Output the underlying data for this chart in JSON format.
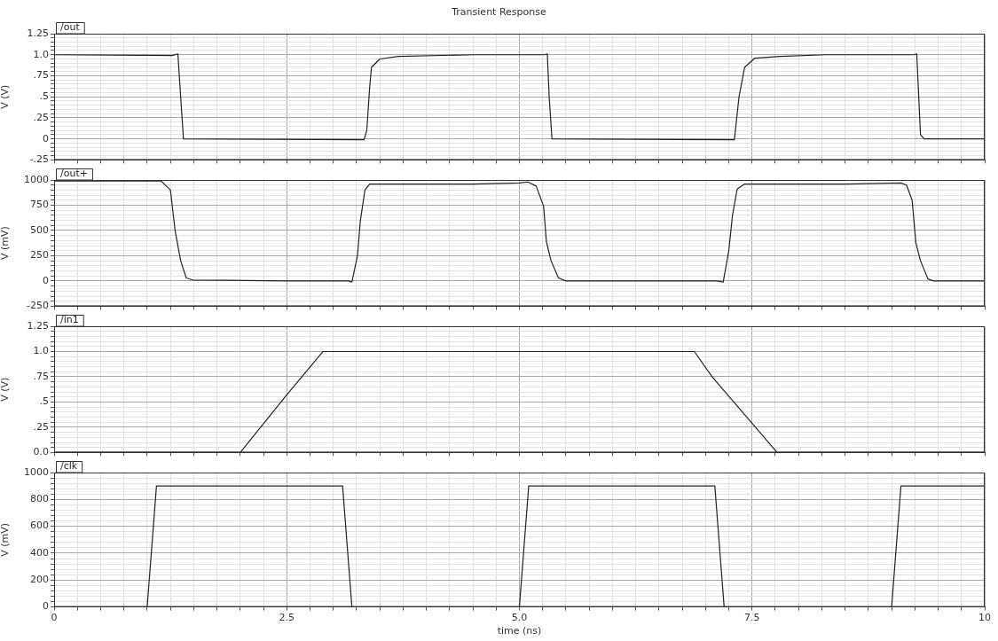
{
  "chart_data": [
    {
      "type": "line",
      "title": "Transient Response",
      "ylabel": "V (V)",
      "legend": "top left",
      "grid": true,
      "marker": "none",
      "line_style": "solid",
      "tick_labels": "y",
      "xlim": [
        0,
        10
      ],
      "xticks": [
        0,
        {
          "value": 0.25,
          "label": null
        },
        {
          "value": 0.5,
          "label": null
        },
        {
          "value": 0.75,
          "label": null
        },
        {
          "value": 1,
          "label": null
        },
        {
          "value": 1.25,
          "label": null
        },
        {
          "value": 1.5,
          "label": null
        },
        {
          "value": 1.75,
          "label": null
        },
        {
          "value": 2,
          "label": null
        },
        {
          "value": 2.25,
          "label": null
        },
        2.5,
        {
          "value": 2.75,
          "label": null
        },
        {
          "value": 3,
          "label": null
        },
        {
          "value": 3.25,
          "label": null
        },
        {
          "value": 3.5,
          "label": null
        },
        {
          "value": 3.75,
          "label": null
        },
        {
          "value": 4,
          "label": null
        },
        {
          "value": 4.25,
          "label": null
        },
        {
          "value": 4.5,
          "label": null
        },
        {
          "value": 4.75,
          "label": null
        },
        5,
        {
          "value": 5.25,
          "label": null
        },
        {
          "value": 5.5,
          "label": null
        },
        {
          "value": 5.75,
          "label": null
        },
        {
          "value": 6,
          "label": null
        },
        {
          "value": 6.25,
          "label": null
        },
        {
          "value": 6.5,
          "label": null
        },
        {
          "value": 6.75,
          "label": null
        },
        {
          "value": 7,
          "label": null
        },
        {
          "value": 7.25,
          "label": null
        },
        7.5,
        {
          "value": 7.75,
          "label": null
        },
        {
          "value": 8,
          "label": null
        },
        {
          "value": 8.25,
          "label": null
        },
        {
          "value": 8.5,
          "label": null
        },
        {
          "value": 8.75,
          "label": null
        },
        {
          "value": 9,
          "label": null
        },
        {
          "value": 9.25,
          "label": null
        },
        {
          "value": 9.5,
          "label": null
        },
        {
          "value": 9.75,
          "label": null
        },
        10
      ],
      "ylim": [
        -0.25,
        1.25
      ],
      "yticks": [
        {
          "value": -0.25,
          "label": "-.25"
        },
        {
          "value": -0.2,
          "label": null
        },
        {
          "value": -0.15,
          "label": null
        },
        {
          "value": -0.1,
          "label": null
        },
        {
          "value": -0.05,
          "label": null
        },
        0,
        {
          "value": 0.05,
          "label": null
        },
        {
          "value": 0.1,
          "label": null
        },
        {
          "value": 0.15,
          "label": null
        },
        {
          "value": 0.2,
          "label": null
        },
        {
          "value": 0.25,
          "label": ".25"
        },
        {
          "value": 0.3,
          "label": null
        },
        {
          "value": 0.35,
          "label": null
        },
        {
          "value": 0.4,
          "label": null
        },
        {
          "value": 0.45,
          "label": null
        },
        {
          "value": 0.5,
          "label": ".5"
        },
        {
          "value": 0.55,
          "label": null
        },
        {
          "value": 0.6,
          "label": null
        },
        {
          "value": 0.65,
          "label": null
        },
        {
          "value": 0.7,
          "label": null
        },
        {
          "value": 0.75,
          "label": ".75"
        },
        {
          "value": 0.8,
          "label": null
        },
        {
          "value": 0.85,
          "label": null
        },
        {
          "value": 0.9,
          "label": null
        },
        {
          "value": 0.95,
          "label": null
        },
        {
          "value": 1,
          "label": "1.0"
        },
        {
          "value": 1.05,
          "label": null
        },
        {
          "value": 1.1,
          "label": null
        },
        {
          "value": 1.15,
          "label": null
        },
        {
          "value": 1.2,
          "label": null
        },
        1.25
      ],
      "series": [
        {
          "name": "/out",
          "color": "#222222",
          "x": [
            0,
            1.27,
            1.33,
            1.36,
            1.39,
            3.33,
            3.36,
            3.39,
            3.41,
            3.5,
            3.7,
            4.5,
            5.27,
            5.3,
            5.32,
            5.35,
            7.31,
            7.36,
            7.42,
            7.53,
            7.8,
            8.3,
            9.24,
            9.27,
            9.31,
            9.35,
            10
          ],
          "values": [
            1.0,
            0.99,
            1.01,
            0.5,
            0.0,
            -0.01,
            0.1,
            0.6,
            0.85,
            0.95,
            0.98,
            1.0,
            1.0,
            1.01,
            0.5,
            0.0,
            -0.01,
            0.5,
            0.85,
            0.96,
            0.98,
            1.0,
            1.0,
            1.01,
            0.05,
            0.0,
            0.0
          ]
        }
      ]
    },
    {
      "type": "line",
      "ylabel": "V (mV)",
      "legend": "top left",
      "grid": true,
      "marker": "none",
      "line_style": "solid",
      "tick_labels": "y",
      "xlim": [
        0,
        10
      ],
      "xticks": [
        0,
        {
          "value": 0.25,
          "label": null
        },
        {
          "value": 0.5,
          "label": null
        },
        {
          "value": 0.75,
          "label": null
        },
        {
          "value": 1,
          "label": null
        },
        {
          "value": 1.25,
          "label": null
        },
        {
          "value": 1.5,
          "label": null
        },
        {
          "value": 1.75,
          "label": null
        },
        {
          "value": 2,
          "label": null
        },
        {
          "value": 2.25,
          "label": null
        },
        2.5,
        {
          "value": 2.75,
          "label": null
        },
        {
          "value": 3,
          "label": null
        },
        {
          "value": 3.25,
          "label": null
        },
        {
          "value": 3.5,
          "label": null
        },
        {
          "value": 3.75,
          "label": null
        },
        {
          "value": 4,
          "label": null
        },
        {
          "value": 4.25,
          "label": null
        },
        {
          "value": 4.5,
          "label": null
        },
        {
          "value": 4.75,
          "label": null
        },
        5,
        {
          "value": 5.25,
          "label": null
        },
        {
          "value": 5.5,
          "label": null
        },
        {
          "value": 5.75,
          "label": null
        },
        {
          "value": 6,
          "label": null
        },
        {
          "value": 6.25,
          "label": null
        },
        {
          "value": 6.5,
          "label": null
        },
        {
          "value": 6.75,
          "label": null
        },
        {
          "value": 7,
          "label": null
        },
        {
          "value": 7.25,
          "label": null
        },
        7.5,
        {
          "value": 7.75,
          "label": null
        },
        {
          "value": 8,
          "label": null
        },
        {
          "value": 8.25,
          "label": null
        },
        {
          "value": 8.5,
          "label": null
        },
        {
          "value": 8.75,
          "label": null
        },
        {
          "value": 9,
          "label": null
        },
        {
          "value": 9.25,
          "label": null
        },
        {
          "value": 9.5,
          "label": null
        },
        {
          "value": 9.75,
          "label": null
        },
        10
      ],
      "ylim": [
        -250,
        1000
      ],
      "yticks": [
        -250,
        {
          "value": -200,
          "label": null
        },
        {
          "value": -150,
          "label": null
        },
        {
          "value": -100,
          "label": null
        },
        {
          "value": -50,
          "label": null
        },
        0,
        {
          "value": 50,
          "label": null
        },
        {
          "value": 100,
          "label": null
        },
        {
          "value": 150,
          "label": null
        },
        {
          "value": 200,
          "label": null
        },
        250,
        {
          "value": 300,
          "label": null
        },
        {
          "value": 350,
          "label": null
        },
        {
          "value": 400,
          "label": null
        },
        {
          "value": 450,
          "label": null
        },
        500,
        {
          "value": 550,
          "label": null
        },
        {
          "value": 600,
          "label": null
        },
        {
          "value": 650,
          "label": null
        },
        {
          "value": 700,
          "label": null
        },
        750,
        {
          "value": 800,
          "label": null
        },
        {
          "value": 850,
          "label": null
        },
        {
          "value": 900,
          "label": null
        },
        {
          "value": 950,
          "label": null
        },
        1000
      ],
      "series": [
        {
          "name": "/out+",
          "color": "#222222",
          "x": [
            0,
            1.15,
            1.25,
            1.3,
            1.36,
            1.42,
            1.49,
            2.5,
            3.16,
            3.2,
            3.26,
            3.29,
            3.34,
            3.39,
            4.5,
            5.0,
            5.09,
            5.18,
            5.26,
            5.29,
            5.34,
            5.42,
            5.5,
            7.12,
            7.19,
            7.25,
            7.29,
            7.34,
            7.42,
            8.5,
            9.1,
            9.16,
            9.22,
            9.26,
            9.31,
            9.39,
            9.45,
            10
          ],
          "values": [
            990,
            990,
            900,
            500,
            200,
            30,
            10,
            0,
            0,
            -10,
            250,
            590,
            900,
            960,
            960,
            970,
            980,
            940,
            740,
            390,
            200,
            30,
            0,
            0,
            -10,
            300,
            650,
            910,
            960,
            960,
            970,
            950,
            800,
            380,
            200,
            20,
            0,
            0
          ]
        }
      ]
    },
    {
      "type": "line",
      "ylabel": "V (V)",
      "legend": "top left",
      "grid": true,
      "marker": "none",
      "line_style": "solid",
      "tick_labels": "y",
      "xlim": [
        0,
        10
      ],
      "xticks": [
        0,
        {
          "value": 0.25,
          "label": null
        },
        {
          "value": 0.5,
          "label": null
        },
        {
          "value": 0.75,
          "label": null
        },
        {
          "value": 1,
          "label": null
        },
        {
          "value": 1.25,
          "label": null
        },
        {
          "value": 1.5,
          "label": null
        },
        {
          "value": 1.75,
          "label": null
        },
        {
          "value": 2,
          "label": null
        },
        {
          "value": 2.25,
          "label": null
        },
        2.5,
        {
          "value": 2.75,
          "label": null
        },
        {
          "value": 3,
          "label": null
        },
        {
          "value": 3.25,
          "label": null
        },
        {
          "value": 3.5,
          "label": null
        },
        {
          "value": 3.75,
          "label": null
        },
        {
          "value": 4,
          "label": null
        },
        {
          "value": 4.25,
          "label": null
        },
        {
          "value": 4.5,
          "label": null
        },
        {
          "value": 4.75,
          "label": null
        },
        5,
        {
          "value": 5.25,
          "label": null
        },
        {
          "value": 5.5,
          "label": null
        },
        {
          "value": 5.75,
          "label": null
        },
        {
          "value": 6,
          "label": null
        },
        {
          "value": 6.25,
          "label": null
        },
        {
          "value": 6.5,
          "label": null
        },
        {
          "value": 6.75,
          "label": null
        },
        {
          "value": 7,
          "label": null
        },
        {
          "value": 7.25,
          "label": null
        },
        7.5,
        {
          "value": 7.75,
          "label": null
        },
        {
          "value": 8,
          "label": null
        },
        {
          "value": 8.25,
          "label": null
        },
        {
          "value": 8.5,
          "label": null
        },
        {
          "value": 8.75,
          "label": null
        },
        {
          "value": 9,
          "label": null
        },
        {
          "value": 9.25,
          "label": null
        },
        {
          "value": 9.5,
          "label": null
        },
        {
          "value": 9.75,
          "label": null
        },
        10
      ],
      "ylim": [
        0,
        1.25
      ],
      "yticks": [
        {
          "value": 0,
          "label": "0.0"
        },
        {
          "value": 0.05,
          "label": null
        },
        {
          "value": 0.1,
          "label": null
        },
        {
          "value": 0.15,
          "label": null
        },
        {
          "value": 0.2,
          "label": null
        },
        {
          "value": 0.25,
          "label": ".25"
        },
        {
          "value": 0.3,
          "label": null
        },
        {
          "value": 0.35,
          "label": null
        },
        {
          "value": 0.4,
          "label": null
        },
        {
          "value": 0.45,
          "label": null
        },
        {
          "value": 0.5,
          "label": ".5"
        },
        {
          "value": 0.55,
          "label": null
        },
        {
          "value": 0.6,
          "label": null
        },
        {
          "value": 0.65,
          "label": null
        },
        {
          "value": 0.7,
          "label": null
        },
        {
          "value": 0.75,
          "label": ".75"
        },
        {
          "value": 0.8,
          "label": null
        },
        {
          "value": 0.85,
          "label": null
        },
        {
          "value": 0.9,
          "label": null
        },
        {
          "value": 0.95,
          "label": null
        },
        {
          "value": 1,
          "label": "1.0"
        },
        {
          "value": 1.05,
          "label": null
        },
        {
          "value": 1.1,
          "label": null
        },
        {
          "value": 1.15,
          "label": null
        },
        {
          "value": 1.2,
          "label": null
        },
        1.25
      ],
      "series": [
        {
          "name": "/in1",
          "color": "#222222",
          "x": [
            0,
            2.0,
            2.5,
            2.89,
            6.88,
            7.07,
            7.77,
            10
          ],
          "values": [
            0,
            0,
            0.57,
            1.0,
            1.0,
            0.75,
            0,
            0
          ]
        }
      ]
    },
    {
      "type": "line",
      "ylabel": "V (mV)",
      "xlabel": "time (ns)",
      "legend": "top left",
      "grid": true,
      "marker": "none",
      "line_style": "solid",
      "xlim": [
        0,
        10
      ],
      "xticks": [
        0,
        {
          "value": 0.25,
          "label": null
        },
        {
          "value": 0.5,
          "label": null
        },
        {
          "value": 0.75,
          "label": null
        },
        {
          "value": 1,
          "label": null
        },
        {
          "value": 1.25,
          "label": null
        },
        {
          "value": 1.5,
          "label": null
        },
        {
          "value": 1.75,
          "label": null
        },
        {
          "value": 2,
          "label": null
        },
        {
          "value": 2.25,
          "label": null
        },
        2.5,
        {
          "value": 2.75,
          "label": null
        },
        {
          "value": 3,
          "label": null
        },
        {
          "value": 3.25,
          "label": null
        },
        {
          "value": 3.5,
          "label": null
        },
        {
          "value": 3.75,
          "label": null
        },
        {
          "value": 4,
          "label": null
        },
        {
          "value": 4.25,
          "label": null
        },
        {
          "value": 4.5,
          "label": null
        },
        {
          "value": 4.75,
          "label": null
        },
        {
          "value": 5,
          "label": "5.0"
        },
        {
          "value": 5.25,
          "label": null
        },
        {
          "value": 5.5,
          "label": null
        },
        {
          "value": 5.75,
          "label": null
        },
        {
          "value": 6,
          "label": null
        },
        {
          "value": 6.25,
          "label": null
        },
        {
          "value": 6.5,
          "label": null
        },
        {
          "value": 6.75,
          "label": null
        },
        {
          "value": 7,
          "label": null
        },
        {
          "value": 7.25,
          "label": null
        },
        7.5,
        {
          "value": 7.75,
          "label": null
        },
        {
          "value": 8,
          "label": null
        },
        {
          "value": 8.25,
          "label": null
        },
        {
          "value": 8.5,
          "label": null
        },
        {
          "value": 8.75,
          "label": null
        },
        {
          "value": 9,
          "label": null
        },
        {
          "value": 9.25,
          "label": null
        },
        {
          "value": 9.5,
          "label": null
        },
        {
          "value": 9.75,
          "label": null
        },
        10
      ],
      "ylim": [
        0,
        1000
      ],
      "yticks": [
        0,
        {
          "value": 40,
          "label": null
        },
        {
          "value": 80,
          "label": null
        },
        {
          "value": 120,
          "label": null
        },
        {
          "value": 160,
          "label": null
        },
        200,
        {
          "value": 240,
          "label": null
        },
        {
          "value": 280,
          "label": null
        },
        {
          "value": 320,
          "label": null
        },
        {
          "value": 360,
          "label": null
        },
        400,
        {
          "value": 440,
          "label": null
        },
        {
          "value": 480,
          "label": null
        },
        {
          "value": 520,
          "label": null
        },
        {
          "value": 560,
          "label": null
        },
        600,
        {
          "value": 640,
          "label": null
        },
        {
          "value": 680,
          "label": null
        },
        {
          "value": 720,
          "label": null
        },
        {
          "value": 760,
          "label": null
        },
        800,
        {
          "value": 840,
          "label": null
        },
        {
          "value": 880,
          "label": null
        },
        {
          "value": 920,
          "label": null
        },
        {
          "value": 960,
          "label": null
        },
        1000
      ],
      "series": [
        {
          "name": "/clk",
          "color": "#222222",
          "x": [
            0,
            1.0,
            1.1,
            3.1,
            3.2,
            5.0,
            5.1,
            7.1,
            7.2,
            9.0,
            9.1,
            10
          ],
          "values": [
            0,
            0,
            900,
            900,
            0,
            0,
            900,
            900,
            0,
            0,
            900,
            900
          ]
        }
      ]
    }
  ]
}
